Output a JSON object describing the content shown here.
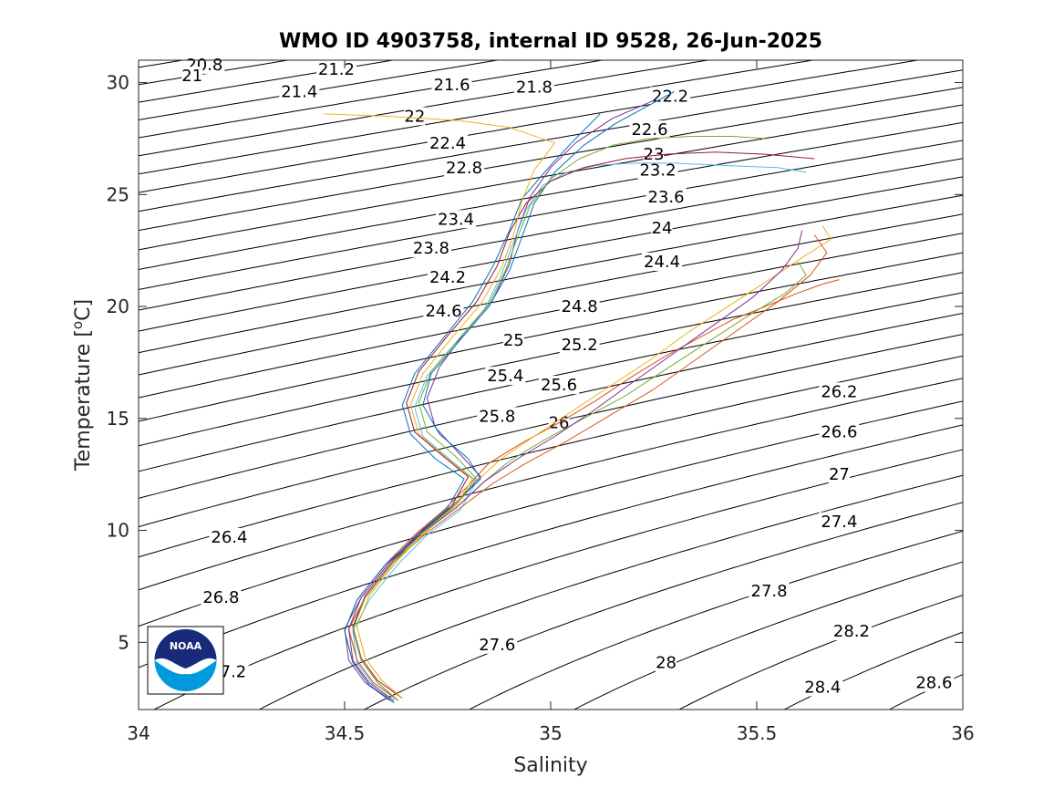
{
  "chart_data": {
    "type": "line",
    "title": "WMO ID 4903758, internal ID 9528, 26-Jun-2025",
    "xlabel": "Salinity",
    "ylabel": "Temperature [",
    "ylabel_unit": "o",
    "ylabel_unit_tail": "C]",
    "xlim": [
      34,
      36
    ],
    "ylim": [
      2,
      31
    ],
    "xticks": [
      34,
      34.5,
      35,
      35.5,
      36
    ],
    "xtick_labels": [
      "34",
      "34.5",
      "35",
      "35.5",
      "36"
    ],
    "yticks": [
      5,
      10,
      15,
      20,
      25,
      30
    ],
    "ytick_labels": [
      "5",
      "10",
      "15",
      "20",
      "25",
      "30"
    ],
    "grid": false,
    "legend": "none",
    "contour_levels": {
      "min": 20.8,
      "max": 28.8,
      "step": 0.2
    },
    "contour_labels": [
      {
        "text": "20.8",
        "s": 34.16,
        "t": 30.8
      },
      {
        "text": "21",
        "s": 34.13,
        "t": 30.3
      },
      {
        "text": "21.2",
        "s": 34.48,
        "t": 30.6
      },
      {
        "text": "21.4",
        "s": 34.39,
        "t": 29.6
      },
      {
        "text": "21.6",
        "s": 34.76,
        "t": 29.9
      },
      {
        "text": "21.8",
        "s": 34.96,
        "t": 29.8
      },
      {
        "text": "22.2",
        "s": 35.29,
        "t": 29.4
      },
      {
        "text": "22",
        "s": 34.67,
        "t": 28.5
      },
      {
        "text": "22.6",
        "s": 35.24,
        "t": 27.9
      },
      {
        "text": "22.4",
        "s": 34.75,
        "t": 27.3
      },
      {
        "text": "23",
        "s": 35.25,
        "t": 26.8
      },
      {
        "text": "23.2",
        "s": 35.26,
        "t": 26.1
      },
      {
        "text": "22.8",
        "s": 34.79,
        "t": 26.2
      },
      {
        "text": "23.6",
        "s": 35.28,
        "t": 24.9
      },
      {
        "text": "23.4",
        "s": 34.77,
        "t": 23.9
      },
      {
        "text": "24",
        "s": 35.27,
        "t": 23.5
      },
      {
        "text": "23.8",
        "s": 34.71,
        "t": 22.6
      },
      {
        "text": "24.4",
        "s": 35.27,
        "t": 22.0
      },
      {
        "text": "24.2",
        "s": 34.75,
        "t": 21.3
      },
      {
        "text": "24.8",
        "s": 35.07,
        "t": 20.0
      },
      {
        "text": "24.6",
        "s": 34.74,
        "t": 19.8
      },
      {
        "text": "25",
        "s": 34.91,
        "t": 18.5
      },
      {
        "text": "25.2",
        "s": 35.07,
        "t": 18.3
      },
      {
        "text": "25.4",
        "s": 34.89,
        "t": 16.9
      },
      {
        "text": "25.6",
        "s": 35.02,
        "t": 16.5
      },
      {
        "text": "25.8",
        "s": 34.87,
        "t": 15.1
      },
      {
        "text": "26",
        "s": 35.02,
        "t": 14.8
      },
      {
        "text": "26.2",
        "s": 35.7,
        "t": 16.2
      },
      {
        "text": "26.6",
        "s": 35.7,
        "t": 14.4
      },
      {
        "text": "27",
        "s": 35.7,
        "t": 12.5
      },
      {
        "text": "27.4",
        "s": 35.7,
        "t": 10.4
      },
      {
        "text": "26.4",
        "s": 34.22,
        "t": 9.7
      },
      {
        "text": "26.8",
        "s": 34.2,
        "t": 7.0
      },
      {
        "text": "27.8",
        "s": 35.53,
        "t": 7.3
      },
      {
        "text": "28.2",
        "s": 35.73,
        "t": 5.5
      },
      {
        "text": "27.6",
        "s": 34.87,
        "t": 4.9
      },
      {
        "text": "28",
        "s": 35.28,
        "t": 4.1
      },
      {
        "text": "7.2",
        "s": 34.23,
        "t": 3.7
      },
      {
        "text": "28.4",
        "s": 35.66,
        "t": 3.0
      },
      {
        "text": "28.6",
        "s": 35.93,
        "t": 3.2
      }
    ],
    "series_colors": [
      "#0072BD",
      "#D95319",
      "#EDB120",
      "#7E2F8E",
      "#77AC30",
      "#4DBEEE",
      "#A2142F"
    ],
    "series": [
      {
        "salinity": [
          34.63,
          34.58,
          34.54,
          34.52,
          34.55,
          34.62,
          34.68,
          34.75,
          34.79,
          34.72,
          34.66,
          34.64,
          34.67,
          34.74,
          34.81,
          34.86,
          34.9,
          34.93,
          34.99,
          35.05,
          35.12
        ],
        "temperature": [
          2.4,
          3.2,
          4.2,
          5.6,
          7.0,
          8.6,
          9.9,
          11.0,
          12.3,
          13.2,
          14.3,
          15.6,
          17.0,
          18.6,
          20.2,
          21.8,
          23.4,
          24.8,
          26.1,
          27.3,
          28.6
        ]
      },
      {
        "salinity": [
          34.62,
          34.56,
          34.52,
          34.5,
          34.53,
          34.6,
          34.67,
          34.74,
          34.8,
          34.85,
          34.93,
          35.02,
          35.11,
          35.2,
          35.28,
          35.36,
          35.44,
          35.52,
          35.6,
          35.66,
          35.7
        ],
        "temperature": [
          2.3,
          3.1,
          4.1,
          5.5,
          6.9,
          8.5,
          9.8,
          10.9,
          12.0,
          13.0,
          13.9,
          14.8,
          15.8,
          16.9,
          17.8,
          18.6,
          19.4,
          20.0,
          20.6,
          21.0,
          21.2
        ]
      },
      {
        "salinity": [
          34.64,
          34.59,
          34.55,
          34.53,
          34.56,
          34.63,
          34.7,
          34.77,
          34.82,
          34.88,
          34.96,
          35.05,
          35.14,
          35.24,
          35.33,
          35.43,
          35.53,
          35.62,
          35.68,
          35.66
        ],
        "temperature": [
          2.5,
          3.3,
          4.3,
          5.7,
          7.1,
          8.7,
          10.0,
          11.1,
          12.2,
          13.2,
          14.2,
          15.3,
          16.4,
          17.6,
          18.8,
          20.0,
          21.2,
          22.3,
          23.0,
          23.6
        ]
      },
      {
        "salinity": [
          34.61,
          34.55,
          34.51,
          34.5,
          34.54,
          34.61,
          34.68,
          34.76,
          34.83,
          34.78,
          34.72,
          34.7,
          34.73,
          34.79,
          34.86,
          34.9,
          34.92,
          34.95,
          35.0,
          35.06,
          35.15,
          35.25
        ],
        "temperature": [
          2.4,
          3.2,
          4.2,
          5.6,
          7.0,
          8.6,
          9.9,
          11.0,
          12.4,
          13.4,
          14.6,
          15.9,
          17.3,
          18.8,
          20.3,
          21.9,
          23.4,
          24.9,
          26.2,
          27.3,
          28.4,
          29.2
        ]
      },
      {
        "salinity": [
          34.63,
          34.57,
          34.53,
          34.51,
          34.55,
          34.62,
          34.69,
          34.77,
          34.84,
          34.9,
          34.98,
          35.08,
          35.18,
          35.28,
          35.38,
          35.48,
          35.57,
          35.62,
          35.6
        ],
        "temperature": [
          2.4,
          3.2,
          4.2,
          5.6,
          7.0,
          8.6,
          9.9,
          11.0,
          12.2,
          13.1,
          14.0,
          15.0,
          16.0,
          17.2,
          18.4,
          19.6,
          20.6,
          21.4,
          22.0
        ]
      },
      {
        "salinity": [
          34.62,
          34.57,
          34.53,
          34.52,
          34.56,
          34.63,
          34.7,
          34.78,
          34.82,
          34.76,
          34.69,
          34.67,
          34.7,
          34.77,
          34.84,
          34.88,
          34.91,
          34.94,
          34.98,
          35.04,
          35.11,
          35.2,
          35.3,
          35.42,
          35.55,
          35.62
        ],
        "temperature": [
          2.3,
          3.1,
          4.1,
          5.5,
          6.9,
          8.5,
          9.8,
          10.9,
          12.2,
          13.1,
          14.2,
          15.5,
          16.9,
          18.4,
          19.9,
          21.4,
          22.9,
          24.3,
          25.4,
          26.0,
          26.3,
          26.4,
          26.4,
          26.3,
          26.2,
          26.0
        ]
      },
      {
        "salinity": [
          34.64,
          34.58,
          34.54,
          34.52,
          34.55,
          34.62,
          34.69,
          34.76,
          34.8,
          34.74,
          34.67,
          34.65,
          34.68,
          34.75,
          34.82,
          34.87,
          34.9,
          34.94,
          35.0,
          35.08,
          35.18,
          35.28,
          35.4,
          35.52,
          35.64
        ],
        "temperature": [
          2.5,
          3.3,
          4.3,
          5.7,
          7.1,
          8.7,
          10.0,
          11.1,
          12.4,
          13.3,
          14.4,
          15.7,
          17.1,
          18.7,
          20.2,
          21.8,
          23.3,
          24.6,
          25.6,
          26.2,
          26.6,
          26.8,
          26.9,
          26.8,
          26.6
        ]
      },
      {
        "salinity": [
          34.62,
          34.56,
          34.52,
          34.5,
          34.53,
          34.6,
          34.68,
          34.75,
          34.83,
          34.8,
          34.73,
          34.69,
          34.71,
          34.78,
          34.85,
          34.9,
          34.93,
          34.96,
          35.01,
          35.08,
          35.16,
          35.24,
          35.3
        ],
        "temperature": [
          2.3,
          3.1,
          4.1,
          5.5,
          6.9,
          8.5,
          9.8,
          10.9,
          12.3,
          13.2,
          14.3,
          15.6,
          17.0,
          18.5,
          20.0,
          21.6,
          23.1,
          24.6,
          26.0,
          27.2,
          28.2,
          29.0,
          29.6
        ]
      },
      {
        "salinity": [
          34.63,
          34.57,
          34.53,
          34.51,
          34.55,
          34.62,
          34.7,
          34.78,
          34.86,
          34.94,
          35.04,
          35.14,
          35.25,
          35.35,
          35.45,
          35.55,
          35.63,
          35.67,
          35.64
        ],
        "temperature": [
          2.4,
          3.2,
          4.2,
          5.6,
          7.0,
          8.6,
          9.9,
          11.0,
          12.1,
          13.0,
          14.0,
          15.1,
          16.3,
          17.6,
          18.9,
          20.2,
          21.4,
          22.4,
          23.2
        ]
      },
      {
        "salinity": [
          34.64,
          34.59,
          34.55,
          34.53,
          34.56,
          34.63,
          34.7,
          34.77,
          34.81,
          34.75,
          34.68,
          34.66,
          34.69,
          34.76,
          34.83,
          34.88,
          34.91,
          34.93,
          34.96,
          35.01,
          34.9,
          34.78,
          34.6,
          34.45
        ],
        "temperature": [
          2.5,
          3.3,
          4.3,
          5.7,
          7.1,
          8.7,
          10.0,
          11.1,
          12.3,
          13.2,
          14.3,
          15.6,
          17.0,
          18.6,
          20.1,
          21.7,
          23.2,
          24.7,
          26.1,
          27.3,
          28.0,
          28.3,
          28.5,
          28.6
        ]
      },
      {
        "salinity": [
          34.62,
          34.56,
          34.52,
          34.51,
          34.54,
          34.61,
          34.69,
          34.77,
          34.84,
          34.92,
          35.01,
          35.1,
          35.19,
          35.29,
          35.39,
          35.49,
          35.56,
          35.6,
          35.61
        ],
        "temperature": [
          2.4,
          3.2,
          4.2,
          5.6,
          7.0,
          8.6,
          9.9,
          11.0,
          12.2,
          13.2,
          14.2,
          15.3,
          16.5,
          17.8,
          19.1,
          20.4,
          21.6,
          22.6,
          23.4
        ]
      },
      {
        "salinity": [
          34.63,
          34.58,
          34.54,
          34.52,
          34.55,
          34.62,
          34.69,
          34.76,
          34.82,
          34.77,
          34.7,
          34.68,
          34.71,
          34.78,
          34.85,
          34.89,
          34.92,
          34.95,
          35.0,
          35.07,
          35.15,
          35.24,
          35.34,
          35.44,
          35.52
        ],
        "temperature": [
          2.4,
          3.2,
          4.2,
          5.6,
          7.0,
          8.6,
          9.9,
          11.0,
          12.3,
          13.3,
          14.4,
          15.7,
          17.1,
          18.6,
          20.1,
          21.6,
          23.1,
          24.5,
          25.7,
          26.6,
          27.2,
          27.5,
          27.6,
          27.6,
          27.5
        ]
      }
    ]
  },
  "logo": {
    "text": "NOAA"
  }
}
